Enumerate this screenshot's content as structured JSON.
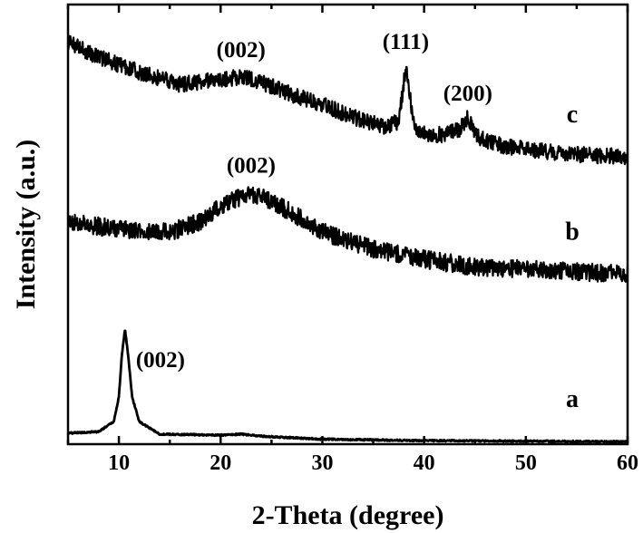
{
  "chart_data": {
    "type": "line",
    "xlabel": "2-Theta (degree)",
    "ylabel": "Intensity (a.u.)",
    "xlim": [
      5,
      60
    ],
    "x_ticks": [
      "10",
      "20",
      "30",
      "40",
      "50",
      "60"
    ],
    "y_ticks_shown": false,
    "grid": false,
    "series": [
      {
        "name": "a",
        "x": [
          5,
          8,
          9.5,
          10,
          10.3,
          10.6,
          10.9,
          11.3,
          12,
          14,
          20,
          22,
          24,
          30,
          40,
          50,
          60
        ],
        "y": [
          0.22,
          0.25,
          0.45,
          0.95,
          1.8,
          2.3,
          1.8,
          0.95,
          0.45,
          0.2,
          0.18,
          0.2,
          0.16,
          0.1,
          0.07,
          0.06,
          0.05
        ]
      },
      {
        "name": "b",
        "x": [
          5,
          10,
          15,
          18,
          20,
          22,
          23,
          24,
          26,
          28,
          30,
          35,
          40,
          45,
          50,
          55,
          60
        ],
        "y": [
          4.45,
          4.3,
          4.25,
          4.45,
          4.75,
          4.95,
          5.0,
          4.95,
          4.75,
          4.5,
          4.25,
          3.9,
          3.7,
          3.55,
          3.5,
          3.45,
          3.4
        ]
      },
      {
        "name": "c",
        "x": [
          5,
          8,
          12,
          16,
          20,
          22,
          24,
          27,
          30,
          33,
          36,
          37.5,
          38.2,
          39,
          40,
          42,
          43.5,
          44.3,
          45.2,
          47,
          50,
          55,
          60
        ],
        "y": [
          8.05,
          7.75,
          7.45,
          7.2,
          7.3,
          7.35,
          7.25,
          7.0,
          6.8,
          6.55,
          6.35,
          6.45,
          7.55,
          6.4,
          6.2,
          6.2,
          6.3,
          6.55,
          6.15,
          6.0,
          5.9,
          5.8,
          5.75
        ]
      }
    ],
    "annotations": [
      {
        "text": "(002)",
        "series": "a",
        "x": 10.6
      },
      {
        "text": "(002)",
        "series": "b",
        "x": 23
      },
      {
        "text": "(002)",
        "series": "c",
        "x": 22
      },
      {
        "text": "(111)",
        "series": "c",
        "x": 38.2
      },
      {
        "text": "(200)",
        "series": "c",
        "x": 44.3
      }
    ],
    "curve_labels": [
      "a",
      "b",
      "c"
    ]
  }
}
